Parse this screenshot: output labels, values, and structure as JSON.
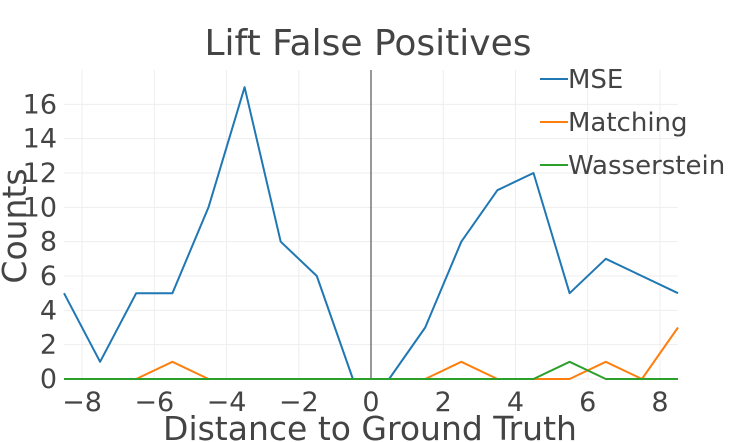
{
  "chart_data": {
    "type": "line",
    "title": "Lift False Positives",
    "xlabel": "Distance to Ground Truth",
    "ylabel": "Counts",
    "xlim": [
      -8.5,
      8.5
    ],
    "ylim": [
      0,
      18
    ],
    "xticks": [
      -8,
      -6,
      -4,
      -2,
      0,
      2,
      4,
      6,
      8
    ],
    "xtick_labels": [
      "−8",
      "−6",
      "−4",
      "−2",
      "0",
      "2",
      "4",
      "6",
      "8"
    ],
    "yticks": [
      0,
      2,
      4,
      6,
      8,
      10,
      12,
      14,
      16
    ],
    "yticks_labels": [
      "0",
      "2",
      "4",
      "6",
      "8",
      "10",
      "12",
      "14",
      "16"
    ],
    "vertical_line_x": 0,
    "grid": true,
    "legend_position": "top-right",
    "x": [
      -8.5,
      -7.5,
      -6.5,
      -5.5,
      -4.5,
      -3.5,
      -2.5,
      -1.5,
      -0.5,
      0.5,
      1.5,
      2.5,
      3.5,
      4.5,
      5.5,
      6.5,
      7.5,
      8.5
    ],
    "series": [
      {
        "name": "MSE",
        "color": "#1f77b4",
        "values": [
          5,
          1,
          5,
          5,
          10,
          17,
          8,
          6,
          0,
          0,
          3,
          8,
          11,
          12,
          5,
          7,
          6,
          5
        ]
      },
      {
        "name": "Matching",
        "color": "#ff7f0e",
        "values": [
          0,
          0,
          0,
          1,
          0,
          0,
          0,
          0,
          0,
          0,
          0,
          1,
          0,
          0,
          0,
          1,
          0,
          3
        ]
      },
      {
        "name": "Wasserstein",
        "color": "#2ca02c",
        "values": [
          0,
          0,
          0,
          0,
          0,
          0,
          0,
          0,
          0,
          0,
          0,
          0,
          0,
          0,
          1,
          0,
          0,
          0
        ]
      }
    ]
  }
}
